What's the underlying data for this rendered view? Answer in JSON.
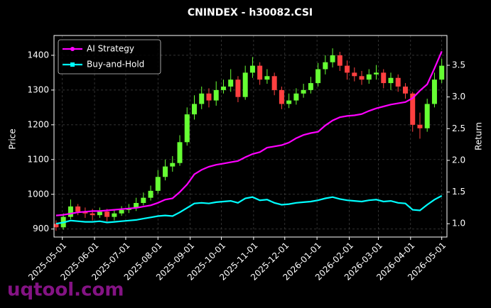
{
  "chart_data": {
    "type": "candlestick",
    "title": "CNINDEX - h30082.CSI",
    "ylabel": "Price",
    "y2label": "Return",
    "watermark": "uqtool.com",
    "x": [
      "2025-04-25",
      "2025-05-02",
      "2025-05-09",
      "2025-05-16",
      "2025-05-23",
      "2025-05-30",
      "2025-06-06",
      "2025-06-13",
      "2025-06-20",
      "2025-06-27",
      "2025-07-04",
      "2025-07-11",
      "2025-07-18",
      "2025-07-25",
      "2025-08-01",
      "2025-08-08",
      "2025-08-15",
      "2025-08-22",
      "2025-08-29",
      "2025-09-05",
      "2025-09-12",
      "2025-09-19",
      "2025-09-26",
      "2025-10-03",
      "2025-10-10",
      "2025-10-17",
      "2025-10-24",
      "2025-10-31",
      "2025-11-07",
      "2025-11-14",
      "2025-11-21",
      "2025-11-28",
      "2025-12-05",
      "2025-12-12",
      "2025-12-19",
      "2025-12-26",
      "2026-01-02",
      "2026-01-09",
      "2026-01-16",
      "2026-01-23",
      "2026-01-30",
      "2026-02-06",
      "2026-02-13",
      "2026-02-20",
      "2026-02-27",
      "2026-03-06",
      "2026-03-13",
      "2026-03-20",
      "2026-03-27",
      "2026-04-03",
      "2026-04-10",
      "2026-04-17",
      "2026-04-24",
      "2026-05-01"
    ],
    "open": [
      915,
      905,
      935,
      965,
      950,
      945,
      940,
      950,
      935,
      945,
      955,
      960,
      975,
      990,
      1010,
      1050,
      1080,
      1090,
      1150,
      1230,
      1260,
      1290,
      1270,
      1300,
      1310,
      1330,
      1280,
      1350,
      1370,
      1330,
      1340,
      1300,
      1260,
      1270,
      1290,
      1300,
      1320,
      1360,
      1380,
      1400,
      1370,
      1350,
      1340,
      1330,
      1345,
      1350,
      1320,
      1335,
      1310,
      1290,
      1200,
      1190,
      1260,
      1330
    ],
    "high": [
      925,
      945,
      985,
      972,
      962,
      958,
      962,
      958,
      955,
      966,
      972,
      990,
      1005,
      1025,
      1070,
      1100,
      1110,
      1170,
      1250,
      1285,
      1310,
      1305,
      1325,
      1330,
      1360,
      1340,
      1370,
      1395,
      1380,
      1360,
      1350,
      1310,
      1290,
      1305,
      1318,
      1338,
      1378,
      1400,
      1420,
      1410,
      1385,
      1365,
      1355,
      1360,
      1372,
      1360,
      1350,
      1345,
      1320,
      1295,
      1235,
      1275,
      1350,
      1390
    ],
    "low": [
      895,
      898,
      928,
      940,
      932,
      925,
      932,
      922,
      925,
      938,
      946,
      952,
      968,
      982,
      1002,
      1040,
      1065,
      1082,
      1140,
      1215,
      1245,
      1250,
      1255,
      1290,
      1295,
      1265,
      1272,
      1335,
      1315,
      1318,
      1285,
      1245,
      1248,
      1258,
      1278,
      1290,
      1310,
      1345,
      1365,
      1355,
      1330,
      1325,
      1315,
      1318,
      1330,
      1305,
      1300,
      1295,
      1275,
      1180,
      1160,
      1180,
      1250,
      1320
    ],
    "close": [
      905,
      935,
      965,
      950,
      945,
      940,
      950,
      935,
      945,
      955,
      960,
      975,
      990,
      1010,
      1050,
      1080,
      1090,
      1150,
      1230,
      1260,
      1290,
      1270,
      1300,
      1310,
      1330,
      1280,
      1350,
      1370,
      1330,
      1340,
      1300,
      1260,
      1270,
      1290,
      1300,
      1320,
      1360,
      1380,
      1400,
      1370,
      1350,
      1340,
      1330,
      1345,
      1350,
      1320,
      1335,
      1310,
      1290,
      1200,
      1190,
      1260,
      1330,
      1370
    ],
    "up_color": "#66ff33",
    "down_color": "#ff4040",
    "series": [
      {
        "name": "AI Strategy",
        "color": "#ff00ff",
        "axis": "y2",
        "marker": "circle",
        "values": [
          1.13,
          1.14,
          1.16,
          1.18,
          1.19,
          1.2,
          1.2,
          1.21,
          1.22,
          1.23,
          1.24,
          1.25,
          1.27,
          1.29,
          1.33,
          1.38,
          1.4,
          1.5,
          1.62,
          1.78,
          1.85,
          1.9,
          1.93,
          1.95,
          1.97,
          1.99,
          2.05,
          2.1,
          2.13,
          2.2,
          2.22,
          2.24,
          2.28,
          2.35,
          2.4,
          2.43,
          2.45,
          2.55,
          2.63,
          2.68,
          2.7,
          2.71,
          2.73,
          2.78,
          2.82,
          2.85,
          2.88,
          2.9,
          2.92,
          2.98,
          3.1,
          3.2,
          3.45,
          3.72
        ]
      },
      {
        "name": "Buy-and-Hold",
        "color": "#00ffff",
        "axis": "y2",
        "marker": "square",
        "values": [
          1.0,
          1.02,
          1.05,
          1.04,
          1.03,
          1.03,
          1.04,
          1.02,
          1.03,
          1.04,
          1.05,
          1.06,
          1.08,
          1.1,
          1.12,
          1.13,
          1.12,
          1.18,
          1.25,
          1.32,
          1.33,
          1.32,
          1.34,
          1.35,
          1.36,
          1.33,
          1.4,
          1.42,
          1.37,
          1.38,
          1.33,
          1.3,
          1.31,
          1.33,
          1.34,
          1.35,
          1.37,
          1.4,
          1.42,
          1.39,
          1.37,
          1.36,
          1.35,
          1.37,
          1.38,
          1.35,
          1.36,
          1.33,
          1.32,
          1.22,
          1.21,
          1.3,
          1.38,
          1.44
        ]
      }
    ],
    "xlim": [
      "2025-04-23",
      "2026-05-06"
    ],
    "xticks": [
      "2025-05-01",
      "2025-06-01",
      "2025-07-01",
      "2025-08-01",
      "2025-09-01",
      "2025-10-01",
      "2025-11-01",
      "2025-12-01",
      "2026-01-01",
      "2026-02-01",
      "2026-03-01",
      "2026-04-01",
      "2026-05-01"
    ],
    "ylim": [
      877,
      1457
    ],
    "yticks": [
      900,
      1000,
      1100,
      1200,
      1300,
      1400
    ],
    "y2lim": [
      0.79,
      3.97
    ],
    "y2ticks": [
      {
        "value": 1,
        "label": "1.0"
      },
      1.5,
      {
        "value": 2,
        "label": "2.0"
      },
      2.5,
      {
        "value": 3,
        "label": "3.0"
      },
      3.5
    ],
    "grid": true,
    "legend": "upper left"
  }
}
